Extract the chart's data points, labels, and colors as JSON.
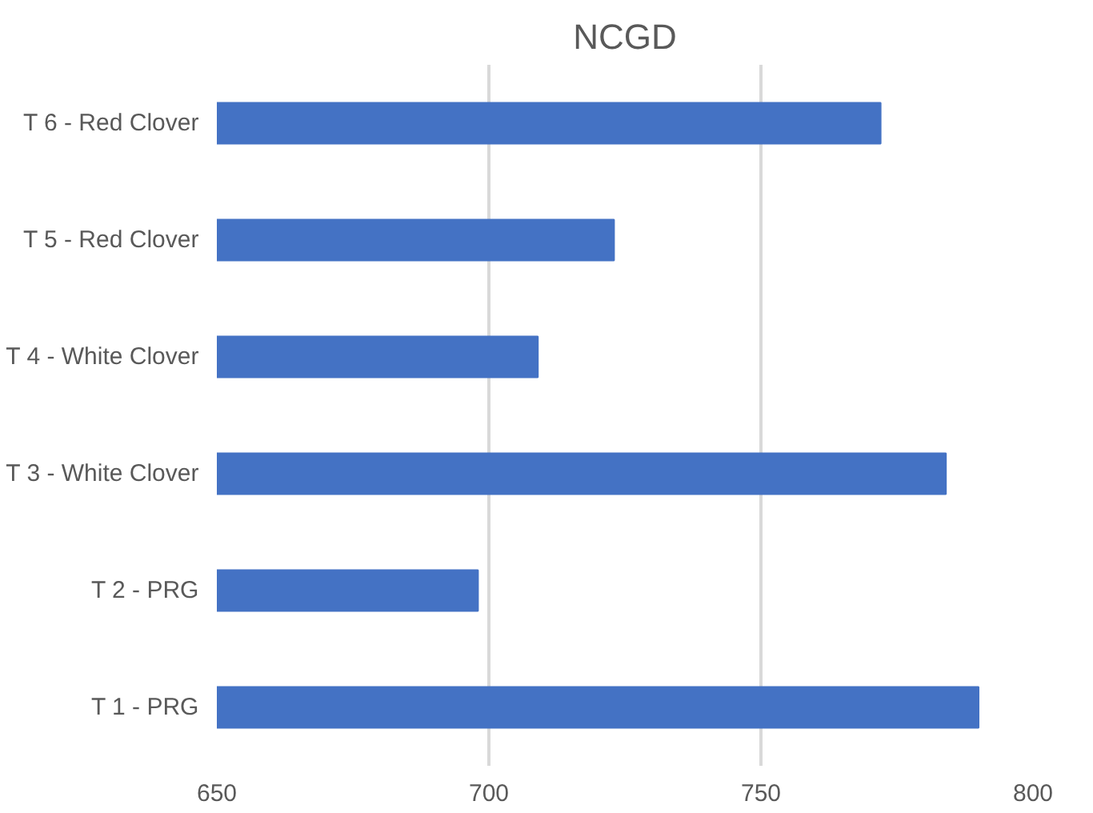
{
  "chart_data": {
    "type": "bar",
    "orientation": "horizontal",
    "title": "NCGD",
    "categories": [
      "T 6 - Red Clover",
      "T 5 - Red Clover",
      "T 4 - White Clover",
      "T 3 - White Clover",
      "T 2 - PRG",
      "T 1 - PRG"
    ],
    "values": [
      772,
      723,
      709,
      784,
      698,
      790
    ],
    "color": "#4472c4",
    "xlim": [
      650,
      800
    ],
    "xticks": [
      650,
      700,
      750,
      800
    ],
    "grid": "x"
  }
}
